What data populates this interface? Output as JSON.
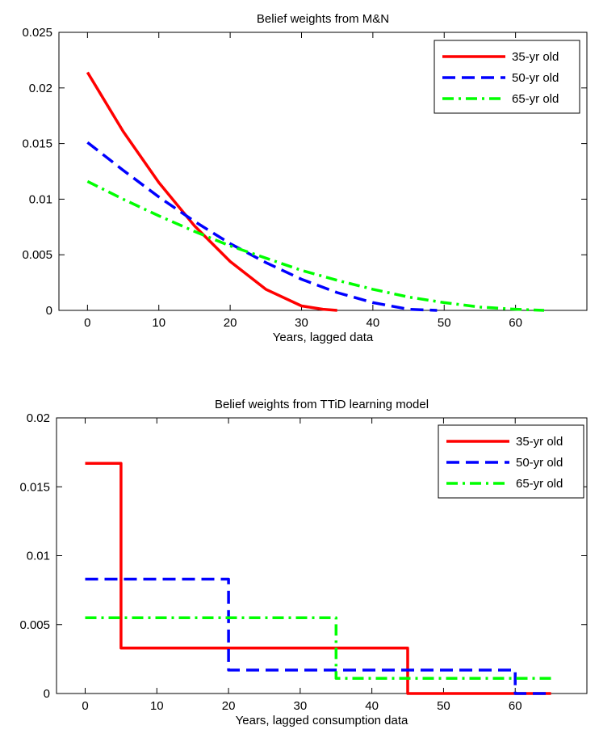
{
  "chart_data": [
    {
      "type": "line",
      "title": "Belief weights from M&N",
      "xlabel": "Years, lagged data",
      "ylabel": "",
      "xlim": [
        -4,
        70
      ],
      "ylim": [
        0,
        0.025
      ],
      "xticks": [
        0,
        10,
        20,
        30,
        40,
        50,
        60
      ],
      "yticks": [
        0,
        0.005,
        0.01,
        0.015,
        0.02,
        0.025
      ],
      "ytick_labels": [
        "0",
        "0.005",
        "0.01",
        "0.015",
        "0.02",
        "0.025"
      ],
      "grid": false,
      "legend_position": "top-right",
      "series": [
        {
          "name": "35-yr old",
          "color": "#ff0000",
          "style": "solid",
          "x": [
            0,
            5,
            10,
            15,
            20,
            25,
            30,
            33,
            35
          ],
          "y": [
            0.0214,
            0.0161,
            0.0115,
            0.0076,
            0.0044,
            0.0019,
            0.0004,
            0.0001,
            0
          ]
        },
        {
          "name": "50-yr old",
          "color": "#0000ff",
          "style": "dashed",
          "x": [
            0,
            5,
            10,
            15,
            20,
            25,
            30,
            35,
            40,
            45,
            49
          ],
          "y": [
            0.0151,
            0.0126,
            0.0102,
            0.008,
            0.006,
            0.0043,
            0.0028,
            0.0016,
            0.0007,
            0.0001,
            0
          ]
        },
        {
          "name": "65-yr old",
          "color": "#00ff00",
          "style": "dashdot",
          "x": [
            0,
            5,
            10,
            15,
            20,
            25,
            30,
            35,
            40,
            45,
            50,
            55,
            60,
            64
          ],
          "y": [
            0.0116,
            0.01,
            0.0085,
            0.0071,
            0.0058,
            0.0047,
            0.0036,
            0.0027,
            0.0019,
            0.0012,
            0.0007,
            0.0003,
            0.0001,
            0
          ]
        }
      ]
    },
    {
      "type": "line",
      "title": "Belief weights from TTiD learning model",
      "xlabel": "Years, lagged consumption data",
      "ylabel": "",
      "xlim": [
        -4,
        70
      ],
      "ylim": [
        0,
        0.02
      ],
      "xticks": [
        0,
        10,
        20,
        30,
        40,
        50,
        60
      ],
      "yticks": [
        0,
        0.005,
        0.01,
        0.015,
        0.02
      ],
      "ytick_labels": [
        "0",
        "0.005",
        "0.01",
        "0.015",
        "0.02"
      ],
      "grid": false,
      "legend_position": "top-right",
      "series": [
        {
          "name": "35-yr old",
          "color": "#ff0000",
          "style": "solid",
          "x": [
            0,
            5,
            5,
            45,
            45,
            65
          ],
          "y": [
            0.0167,
            0.0167,
            0.0033,
            0.0033,
            0,
            0
          ]
        },
        {
          "name": "50-yr old",
          "color": "#0000ff",
          "style": "dashed",
          "x": [
            0,
            20,
            20,
            60,
            60,
            65
          ],
          "y": [
            0.0083,
            0.0083,
            0.0017,
            0.0017,
            0,
            0
          ]
        },
        {
          "name": "65-yr old",
          "color": "#00ff00",
          "style": "dashdot",
          "x": [
            0,
            35,
            35,
            65
          ],
          "y": [
            0.0055,
            0.0055,
            0.0011,
            0.0011
          ]
        }
      ]
    }
  ]
}
